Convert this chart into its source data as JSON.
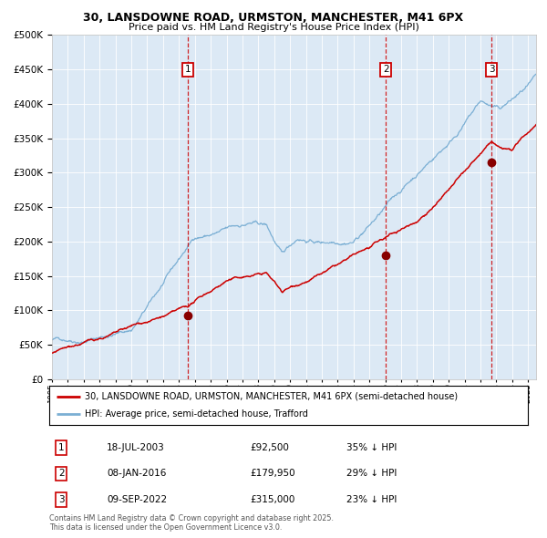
{
  "title_line1": "30, LANSDOWNE ROAD, URMSTON, MANCHESTER, M41 6PX",
  "title_line2": "Price paid vs. HM Land Registry's House Price Index (HPI)",
  "background_color": "#dce9f5",
  "red_line_label": "30, LANSDOWNE ROAD, URMSTON, MANCHESTER, M41 6PX (semi-detached house)",
  "blue_line_label": "HPI: Average price, semi-detached house, Trafford",
  "footer": "Contains HM Land Registry data © Crown copyright and database right 2025.\nThis data is licensed under the Open Government Licence v3.0.",
  "transactions": [
    {
      "num": 1,
      "date": "18-JUL-2003",
      "price": 92500,
      "pct": "35% ↓ HPI",
      "year": 2003.54
    },
    {
      "num": 2,
      "date": "08-JAN-2016",
      "price": 179950,
      "pct": "29% ↓ HPI",
      "year": 2016.03
    },
    {
      "num": 3,
      "date": "09-SEP-2022",
      "price": 315000,
      "pct": "23% ↓ HPI",
      "year": 2022.69
    }
  ],
  "ylim": [
    0,
    500000
  ],
  "xlim_start": 1995.0,
  "xlim_end": 2025.5,
  "red_color": "#cc0000",
  "blue_color": "#7bafd4",
  "marker_color": "#880000",
  "vline_color": "#cc0000",
  "box_color": "#cc0000",
  "grid_color": "#ffffff",
  "white": "#ffffff"
}
